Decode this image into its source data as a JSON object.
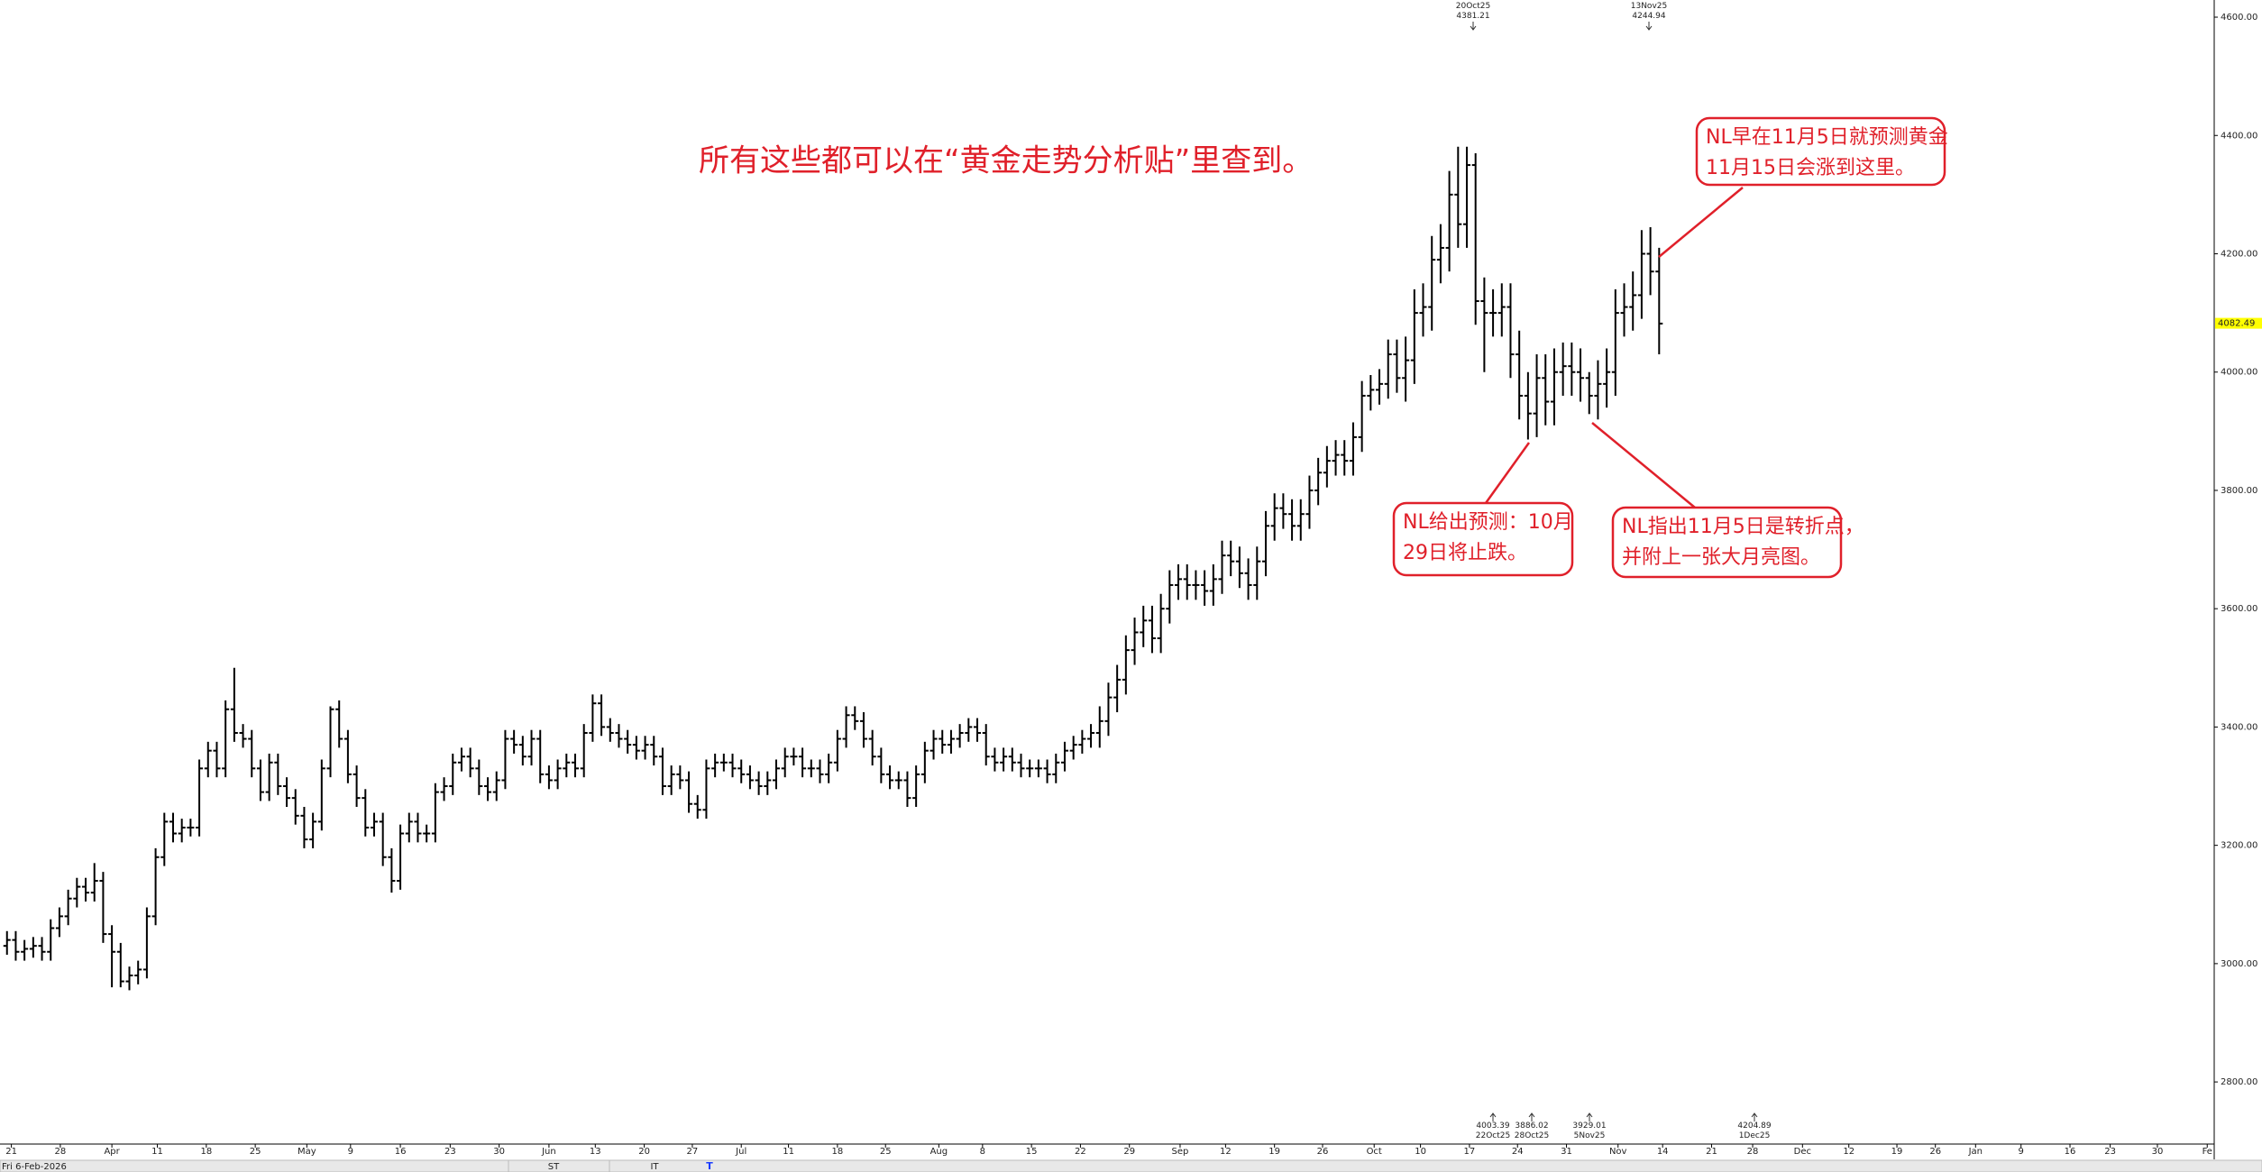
{
  "chart_data": {
    "type": "ohlc",
    "title": "所有这些都可以在“黄金走势分析贴”里查到。",
    "open": [
      3030,
      3040,
      3020,
      3025,
      3030,
      3020,
      3060,
      3080,
      3110,
      3130,
      3120,
      3140,
      3050,
      3020,
      2970,
      2980,
      2990,
      3080,
      3180,
      3240,
      3220,
      3230,
      3230,
      3330,
      3360,
      3330,
      3430,
      3390,
      3380,
      3330,
      3290,
      3340,
      3300,
      3280,
      3250,
      3210,
      3240,
      3330,
      3430,
      3380,
      3320,
      3280,
      3230,
      3240,
      3180,
      3140,
      3220,
      3240,
      3220,
      3220,
      3290,
      3300,
      3340,
      3350,
      3330,
      3300,
      3290,
      3310,
      3380,
      3370,
      3350,
      3380,
      3320,
      3310,
      3330,
      3340,
      3330,
      3390,
      3440,
      3400,
      3390,
      3380,
      3370,
      3360,
      3370,
      3350,
      3300,
      3320,
      3310,
      3270,
      3260,
      3330,
      3340,
      3340,
      3330,
      3320,
      3310,
      3300,
      3310,
      3330,
      3350,
      3350,
      3330,
      3330,
      3320,
      3340,
      3380,
      3420,
      3410,
      3380,
      3350,
      3320,
      3310,
      3310,
      3280,
      3320,
      3360,
      3380,
      3370,
      3380,
      3390,
      3400,
      3390,
      3350,
      3340,
      3350,
      3340,
      3330,
      3330,
      3330,
      3320,
      3340,
      3360,
      3370,
      3380,
      3390,
      3410,
      3450,
      3480,
      3530,
      3560,
      3580,
      3550,
      3600,
      3640,
      3650,
      3640,
      3640,
      3630,
      3650,
      3690,
      3680,
      3660,
      3640,
      3680,
      3740,
      3770,
      3760,
      3740,
      3760,
      3800,
      3830,
      3850,
      3860,
      3850,
      3890,
      3960,
      3970,
      3980,
      4030,
      3990,
      4020,
      4100,
      4110,
      4190,
      4210,
      4300,
      4250,
      4350,
      4120,
      4100,
      4100,
      4110,
      4030,
      3960,
      3930,
      3990,
      3950,
      4000,
      4010,
      4000,
      3990,
      3960,
      3980,
      4000,
      4100,
      4110,
      4130,
      4200,
      4170
    ],
    "high": [
      3055,
      3055,
      3040,
      3045,
      3045,
      3075,
      3095,
      3125,
      3145,
      3145,
      3170,
      3155,
      3065,
      3035,
      2995,
      3005,
      3095,
      3195,
      3255,
      3255,
      3245,
      3245,
      3345,
      3375,
      3375,
      3445,
      3500,
      3405,
      3395,
      3345,
      3355,
      3355,
      3315,
      3295,
      3265,
      3255,
      3345,
      3435,
      3445,
      3395,
      3335,
      3295,
      3255,
      3255,
      3195,
      3235,
      3255,
      3255,
      3235,
      3305,
      3315,
      3355,
      3365,
      3365,
      3345,
      3315,
      3325,
      3395,
      3395,
      3385,
      3395,
      3395,
      3335,
      3345,
      3355,
      3355,
      3405,
      3455,
      3455,
      3415,
      3405,
      3395,
      3385,
      3385,
      3385,
      3365,
      3335,
      3335,
      3325,
      3285,
      3345,
      3355,
      3355,
      3355,
      3345,
      3335,
      3325,
      3325,
      3345,
      3365,
      3365,
      3365,
      3345,
      3345,
      3355,
      3395,
      3435,
      3435,
      3425,
      3395,
      3365,
      3335,
      3325,
      3325,
      3335,
      3375,
      3395,
      3395,
      3395,
      3405,
      3415,
      3415,
      3405,
      3365,
      3365,
      3365,
      3355,
      3345,
      3345,
      3345,
      3355,
      3375,
      3385,
      3395,
      3405,
      3435,
      3475,
      3505,
      3555,
      3585,
      3605,
      3605,
      3625,
      3665,
      3675,
      3675,
      3665,
      3665,
      3675,
      3715,
      3715,
      3705,
      3685,
      3705,
      3765,
      3795,
      3795,
      3785,
      3785,
      3825,
      3855,
      3875,
      3885,
      3885,
      3915,
      3985,
      3995,
      4005,
      4055,
      4055,
      4060,
      4140,
      4150,
      4230,
      4250,
      4340,
      4381,
      4381,
      4370,
      4160,
      4140,
      4150,
      4150,
      4070,
      4000,
      4030,
      4030,
      4040,
      4050,
      4050,
      4040,
      4000,
      4020,
      4040,
      4140,
      4150,
      4170,
      4240,
      4245,
      4210
    ],
    "low": [
      3015,
      3005,
      3005,
      3010,
      3005,
      3005,
      3045,
      3065,
      3095,
      3105,
      3105,
      3035,
      2960,
      2960,
      2955,
      2965,
      2975,
      3065,
      3165,
      3205,
      3205,
      3215,
      3215,
      3315,
      3315,
      3315,
      3375,
      3365,
      3315,
      3275,
      3275,
      3285,
      3265,
      3235,
      3195,
      3195,
      3225,
      3315,
      3365,
      3305,
      3265,
      3215,
      3215,
      3165,
      3120,
      3125,
      3205,
      3205,
      3205,
      3205,
      3275,
      3285,
      3325,
      3315,
      3285,
      3275,
      3275,
      3295,
      3355,
      3335,
      3335,
      3305,
      3295,
      3295,
      3315,
      3315,
      3315,
      3375,
      3385,
      3375,
      3365,
      3355,
      3345,
      3345,
      3335,
      3285,
      3285,
      3295,
      3255,
      3245,
      3245,
      3315,
      3325,
      3315,
      3305,
      3295,
      3285,
      3285,
      3295,
      3315,
      3335,
      3315,
      3315,
      3305,
      3305,
      3325,
      3365,
      3395,
      3365,
      3335,
      3305,
      3295,
      3295,
      3265,
      3265,
      3305,
      3345,
      3355,
      3355,
      3365,
      3375,
      3375,
      3335,
      3325,
      3325,
      3325,
      3315,
      3315,
      3315,
      3305,
      3305,
      3325,
      3345,
      3355,
      3365,
      3365,
      3385,
      3425,
      3455,
      3505,
      3535,
      3525,
      3525,
      3575,
      3615,
      3615,
      3615,
      3605,
      3605,
      3625,
      3655,
      3635,
      3615,
      3615,
      3655,
      3715,
      3735,
      3715,
      3715,
      3735,
      3775,
      3805,
      3825,
      3825,
      3825,
      3865,
      3935,
      3945,
      3955,
      3965,
      3950,
      3980,
      4060,
      4070,
      4150,
      4170,
      4210,
      4210,
      4080,
      4000,
      4060,
      4060,
      3990,
      3920,
      3886,
      3890,
      3910,
      3910,
      3960,
      3960,
      3950,
      3929,
      3920,
      3940,
      3960,
      4060,
      4070,
      4090,
      4130,
      4030
    ],
    "close": [
      3040,
      3020,
      3025,
      3030,
      3020,
      3060,
      3080,
      3110,
      3130,
      3120,
      3140,
      3050,
      3020,
      2970,
      2980,
      2990,
      3080,
      3180,
      3240,
      3220,
      3230,
      3230,
      3330,
      3360,
      3330,
      3430,
      3390,
      3380,
      3330,
      3290,
      3340,
      3300,
      3280,
      3250,
      3210,
      3240,
      3330,
      3430,
      3380,
      3320,
      3280,
      3230,
      3240,
      3180,
      3140,
      3220,
      3240,
      3220,
      3220,
      3290,
      3300,
      3340,
      3350,
      3330,
      3300,
      3290,
      3310,
      3380,
      3370,
      3350,
      3380,
      3320,
      3310,
      3330,
      3340,
      3330,
      3390,
      3440,
      3400,
      3390,
      3380,
      3370,
      3360,
      3370,
      3350,
      3300,
      3320,
      3310,
      3270,
      3260,
      3330,
      3340,
      3340,
      3330,
      3320,
      3310,
      3300,
      3310,
      3330,
      3350,
      3350,
      3330,
      3330,
      3320,
      3340,
      3380,
      3420,
      3410,
      3380,
      3350,
      3320,
      3310,
      3310,
      3280,
      3320,
      3360,
      3380,
      3370,
      3380,
      3390,
      3400,
      3390,
      3350,
      3340,
      3350,
      3340,
      3330,
      3330,
      3330,
      3320,
      3340,
      3360,
      3370,
      3380,
      3390,
      3410,
      3450,
      3480,
      3530,
      3560,
      3580,
      3550,
      3600,
      3640,
      3650,
      3640,
      3640,
      3630,
      3650,
      3690,
      3680,
      3660,
      3640,
      3680,
      3740,
      3770,
      3760,
      3740,
      3760,
      3800,
      3830,
      3850,
      3860,
      3850,
      3890,
      3960,
      3970,
      3980,
      4030,
      3990,
      4020,
      4100,
      4110,
      4190,
      4210,
      4300,
      4250,
      4350,
      4120,
      4100,
      4100,
      4110,
      4030,
      3960,
      3930,
      3990,
      3950,
      4000,
      4010,
      4000,
      3990,
      3960,
      3980,
      4000,
      4100,
      4110,
      4130,
      4200,
      4170,
      4082
    ],
    "color": "#000000",
    "xlim": [
      -0.8,
      252.5
    ],
    "ylim": [
      2695,
      4629
    ],
    "yticks": [
      {
        "value": 2800,
        "label": "2800.00"
      },
      {
        "value": 3000,
        "label": "3000.00"
      },
      {
        "value": 3200,
        "label": "3200.00"
      },
      {
        "value": 3400,
        "label": "3400.00"
      },
      {
        "value": 3600,
        "label": "3600.00"
      },
      {
        "value": 3800,
        "label": "3800.00"
      },
      {
        "value": 4000,
        "label": "4000.00"
      },
      {
        "value": 4200,
        "label": "4200.00"
      },
      {
        "value": 4400,
        "label": "4400.00"
      },
      {
        "value": 4600,
        "label": "4600.00"
      }
    ],
    "xticks": [
      {
        "value": 0.5,
        "label": "21"
      },
      {
        "value": 6.1,
        "label": "28"
      },
      {
        "value": 12.0,
        "label": "Apr"
      },
      {
        "value": 17.2,
        "label": "11"
      },
      {
        "value": 22.8,
        "label": "18"
      },
      {
        "value": 28.4,
        "label": "25"
      },
      {
        "value": 34.3,
        "label": "May"
      },
      {
        "value": 39.3,
        "label": "9"
      },
      {
        "value": 45.0,
        "label": "16"
      },
      {
        "value": 50.7,
        "label": "23"
      },
      {
        "value": 56.3,
        "label": "30"
      },
      {
        "value": 62.0,
        "label": "Jun"
      },
      {
        "value": 67.3,
        "label": "13"
      },
      {
        "value": 72.9,
        "label": "20"
      },
      {
        "value": 78.4,
        "label": "27"
      },
      {
        "value": 84.0,
        "label": "Jul"
      },
      {
        "value": 89.4,
        "label": "11"
      },
      {
        "value": 95.0,
        "label": "18"
      },
      {
        "value": 100.5,
        "label": "25"
      },
      {
        "value": 106.6,
        "label": "Aug"
      },
      {
        "value": 111.6,
        "label": "8"
      },
      {
        "value": 117.2,
        "label": "15"
      },
      {
        "value": 122.8,
        "label": "22"
      },
      {
        "value": 128.4,
        "label": "29"
      },
      {
        "value": 134.2,
        "label": "Sep"
      },
      {
        "value": 139.4,
        "label": "12"
      },
      {
        "value": 145.0,
        "label": "19"
      },
      {
        "value": 150.5,
        "label": "26"
      },
      {
        "value": 156.4,
        "label": "Oct"
      },
      {
        "value": 161.7,
        "label": "10"
      },
      {
        "value": 167.3,
        "label": "17"
      },
      {
        "value": 172.8,
        "label": "24"
      },
      {
        "value": 178.4,
        "label": "31"
      },
      {
        "value": 184.3,
        "label": "Nov"
      },
      {
        "value": 189.4,
        "label": "14"
      },
      {
        "value": 195.0,
        "label": "21"
      },
      {
        "value": 199.7,
        "label": "28"
      },
      {
        "value": 205.4,
        "label": "Dec"
      },
      {
        "value": 210.7,
        "label": "12"
      },
      {
        "value": 216.2,
        "label": "19"
      },
      {
        "value": 220.6,
        "label": "26"
      },
      {
        "value": 225.2,
        "label": "Jan"
      },
      {
        "value": 230.4,
        "label": "9"
      },
      {
        "value": 236.0,
        "label": "16"
      },
      {
        "value": 240.6,
        "label": "23"
      },
      {
        "value": 246.0,
        "label": "30"
      },
      {
        "value": 251.7,
        "label": "Fe"
      }
    ],
    "last_price": 4082.49,
    "high_markers": [
      {
        "date": "20Oct25",
        "value": 4381.21
      },
      {
        "date": "13Nov25",
        "value": 4244.94
      }
    ],
    "low_markers": [
      {
        "value": 4003.39,
        "date": "22Oct25"
      },
      {
        "value": 3886.02,
        "date": "28Oct25"
      },
      {
        "value": 3929.01,
        "date": "5Nov25"
      },
      {
        "value": 4204.89,
        "date": "1Dec25"
      }
    ],
    "callouts": [
      {
        "lines": [
          "NL早在11月5日就预测黄金",
          "11月15日会涨到这里。"
        ]
      },
      {
        "lines": [
          "NL给出预测：10月",
          "29日将止跌。"
        ]
      },
      {
        "lines": [
          "NL指出11月5日是转折点，",
          "并附上一张大月亮图。"
        ]
      }
    ],
    "status": {
      "date": "Fri 6-Feb-2026",
      "tabs": [
        "ST",
        "IT"
      ],
      "marker": "T"
    }
  }
}
